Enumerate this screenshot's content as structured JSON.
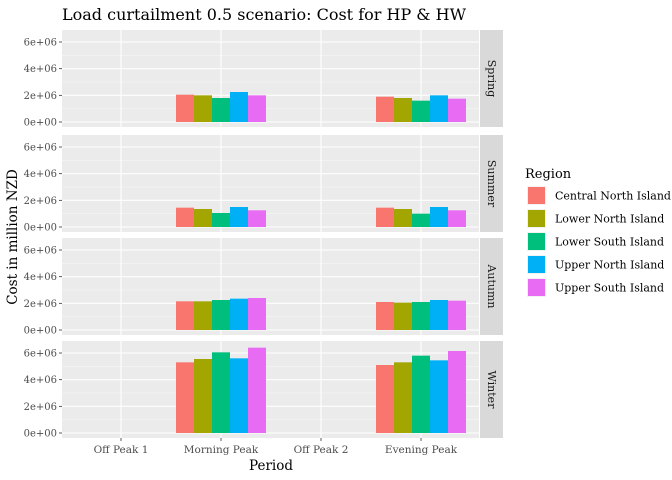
{
  "chart_data": {
    "type": "bar",
    "title": "Load curtailment 0.5 scenario: Cost for HP & HW",
    "xlabel": "Period",
    "ylabel": "Cost in million NZD",
    "categories": [
      "Off Peak 1",
      "Morning Peak",
      "Off Peak 2",
      "Evening Peak"
    ],
    "y_ticks": [
      "0e+00",
      "2e+06",
      "4e+06",
      "6e+06"
    ],
    "ylim": [
      0,
      6600000
    ],
    "legend_title": "Region",
    "legend_position": "right",
    "grid": true,
    "series": [
      {
        "name": "Central North Island",
        "color": "#F8766D"
      },
      {
        "name": "Lower North Island",
        "color": "#A3A500"
      },
      {
        "name": "Lower South Island",
        "color": "#00BF7D"
      },
      {
        "name": "Upper North Island",
        "color": "#00B0F6"
      },
      {
        "name": "Upper South Island",
        "color": "#E76BF3"
      }
    ],
    "facets": [
      {
        "label": "Spring",
        "values": [
          [
            0,
            0,
            0,
            0,
            0
          ],
          [
            2050000,
            2000000,
            1800000,
            2250000,
            2000000
          ],
          [
            0,
            0,
            0,
            0,
            0
          ],
          [
            1900000,
            1800000,
            1600000,
            2000000,
            1750000
          ]
        ]
      },
      {
        "label": "Summer",
        "values": [
          [
            0,
            0,
            0,
            0,
            0
          ],
          [
            1450000,
            1350000,
            1050000,
            1500000,
            1250000
          ],
          [
            0,
            0,
            0,
            0,
            0
          ],
          [
            1450000,
            1350000,
            1000000,
            1500000,
            1250000
          ]
        ]
      },
      {
        "label": "Autumn",
        "values": [
          [
            0,
            0,
            0,
            0,
            0
          ],
          [
            2150000,
            2150000,
            2250000,
            2350000,
            2400000
          ],
          [
            0,
            0,
            0,
            0,
            0
          ],
          [
            2100000,
            2050000,
            2100000,
            2250000,
            2200000
          ]
        ]
      },
      {
        "label": "Winter",
        "values": [
          [
            0,
            0,
            0,
            0,
            0
          ],
          [
            5300000,
            5550000,
            6050000,
            5600000,
            6400000
          ],
          [
            0,
            0,
            0,
            0,
            0
          ],
          [
            5100000,
            5300000,
            5800000,
            5450000,
            6150000
          ]
        ]
      }
    ]
  }
}
